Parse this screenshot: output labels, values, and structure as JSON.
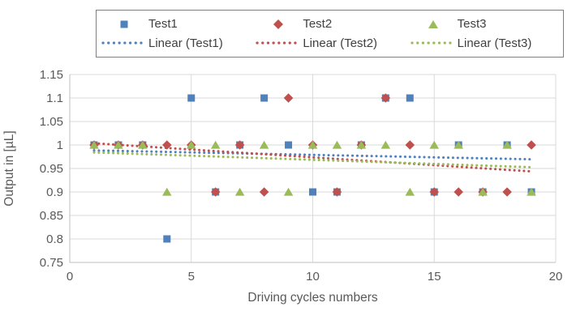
{
  "chart_data": {
    "type": "scatter",
    "title": "",
    "xlabel": "Driving cycles numbers",
    "ylabel": "Output in [µL]",
    "xlim": [
      0,
      20
    ],
    "ylim": [
      0.75,
      1.15
    ],
    "grid": true,
    "legend_position": "top",
    "xticks": [
      {
        "v": 0,
        "label": "0"
      },
      {
        "v": 5,
        "label": "5"
      },
      {
        "v": 10,
        "label": "10"
      },
      {
        "v": 15,
        "label": "15"
      },
      {
        "v": 20,
        "label": "20"
      }
    ],
    "yticks": [
      {
        "v": 1.15,
        "label": "1.15"
      },
      {
        "v": 1.1,
        "label": "1.1"
      },
      {
        "v": 1.05,
        "label": "1.05"
      },
      {
        "v": 1.0,
        "label": "1"
      },
      {
        "v": 0.95,
        "label": "0.95"
      },
      {
        "v": 0.9,
        "label": "0.9"
      },
      {
        "v": 0.85,
        "label": "0.85"
      },
      {
        "v": 0.8,
        "label": "0.8"
      },
      {
        "v": 0.75,
        "label": "0.75"
      }
    ],
    "x": [
      1,
      2,
      3,
      4,
      5,
      6,
      7,
      8,
      9,
      10,
      11,
      12,
      13,
      14,
      15,
      16,
      17,
      18,
      19
    ],
    "series": [
      {
        "name": "Test1",
        "marker": "square",
        "color": "#4F81BD",
        "values": [
          1,
          1,
          1,
          0.8,
          1.1,
          0.9,
          1,
          1.1,
          1,
          0.9,
          0.9,
          1,
          1.1,
          1.1,
          0.9,
          1,
          0.9,
          1,
          0.9
        ]
      },
      {
        "name": "Test2",
        "marker": "diamond",
        "color": "#C0504D",
        "values": [
          1,
          1,
          1,
          1,
          1,
          0.9,
          1,
          0.9,
          1.1,
          1,
          0.9,
          1,
          1.1,
          1,
          0.9,
          0.9,
          0.9,
          0.9,
          1
        ]
      },
      {
        "name": "Test3",
        "marker": "triangle",
        "color": "#9BBB59",
        "values": [
          1,
          1,
          1,
          0.9,
          1,
          1,
          0.9,
          1,
          0.9,
          1,
          1,
          1,
          1,
          0.9,
          1,
          1,
          0.9,
          1,
          0.9
        ]
      }
    ],
    "trendlines": [
      {
        "name": "Linear (Test1)",
        "color": "#4F81BD",
        "slope": -0.00105,
        "intercept": 0.9895,
        "x_start": 1,
        "x_end": 19
      },
      {
        "name": "Linear (Test2)",
        "color": "#C0504D",
        "slope": -0.00333,
        "intercept": 1.007,
        "x_start": 1,
        "x_end": 19
      },
      {
        "name": "Linear (Test3)",
        "color": "#9BBB59",
        "slope": -0.00175,
        "intercept": 0.986,
        "x_start": 1,
        "x_end": 19
      }
    ]
  },
  "legend": {
    "items": [
      {
        "label": "Test1"
      },
      {
        "label": "Test2"
      },
      {
        "label": "Test3"
      },
      {
        "label": "Linear (Test1)"
      },
      {
        "label": "Linear (Test2)"
      },
      {
        "label": "Linear (Test3)"
      }
    ]
  },
  "colors": {
    "series1": "#4F81BD",
    "series2": "#C0504D",
    "series3": "#9BBB59",
    "gridline": "#D9D9D9",
    "axis_line": "#BFBFBF",
    "tick_text": "#595959",
    "legend_text": "#404040",
    "legend_border": "#7F7F7F"
  }
}
